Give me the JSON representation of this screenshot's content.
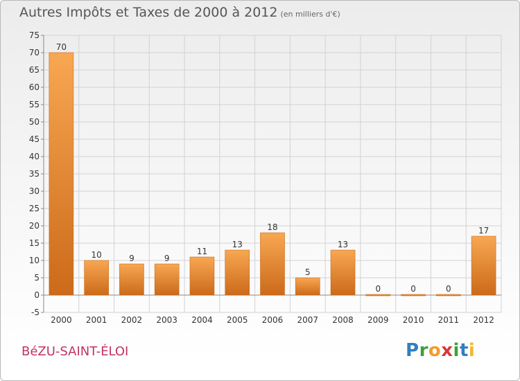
{
  "header": {
    "title": "Autres Impôts et Taxes de 2000 à 2012",
    "unit": "(en milliers d'€)"
  },
  "commune": "BéZU-SAINT-ÉLOI",
  "logo": {
    "letters": [
      "P",
      "r",
      "o",
      "x",
      "i",
      "t",
      "i"
    ],
    "colors": [
      "#2f7fc1",
      "#3fa03a",
      "#f29a2e",
      "#d9383b",
      "#3fa03a",
      "#2f7fc1",
      "#f2b82e"
    ]
  },
  "colors": {
    "bar_light": "#f8a752",
    "bar_dark": "#cb6a1a",
    "grid": "#d2d2d2",
    "axis_text": "#333333"
  },
  "chart_data": {
    "type": "bar",
    "categories": [
      "2000",
      "2001",
      "2002",
      "2003",
      "2004",
      "2005",
      "2006",
      "2007",
      "2008",
      "2009",
      "2010",
      "2011",
      "2012"
    ],
    "values": [
      70,
      10,
      9,
      9,
      11,
      13,
      18,
      5,
      13,
      0,
      0,
      0,
      17
    ],
    "data_labels": [
      "70",
      "10",
      "9",
      "9",
      "11",
      "13",
      "18",
      "5",
      "13",
      "0",
      "0",
      "0",
      "17"
    ],
    "yticks": [
      -5,
      0,
      5,
      10,
      15,
      20,
      25,
      30,
      35,
      40,
      45,
      50,
      55,
      60,
      65,
      70,
      75
    ],
    "ylim": [
      -5,
      75
    ],
    "grid": true,
    "legend": "none"
  }
}
